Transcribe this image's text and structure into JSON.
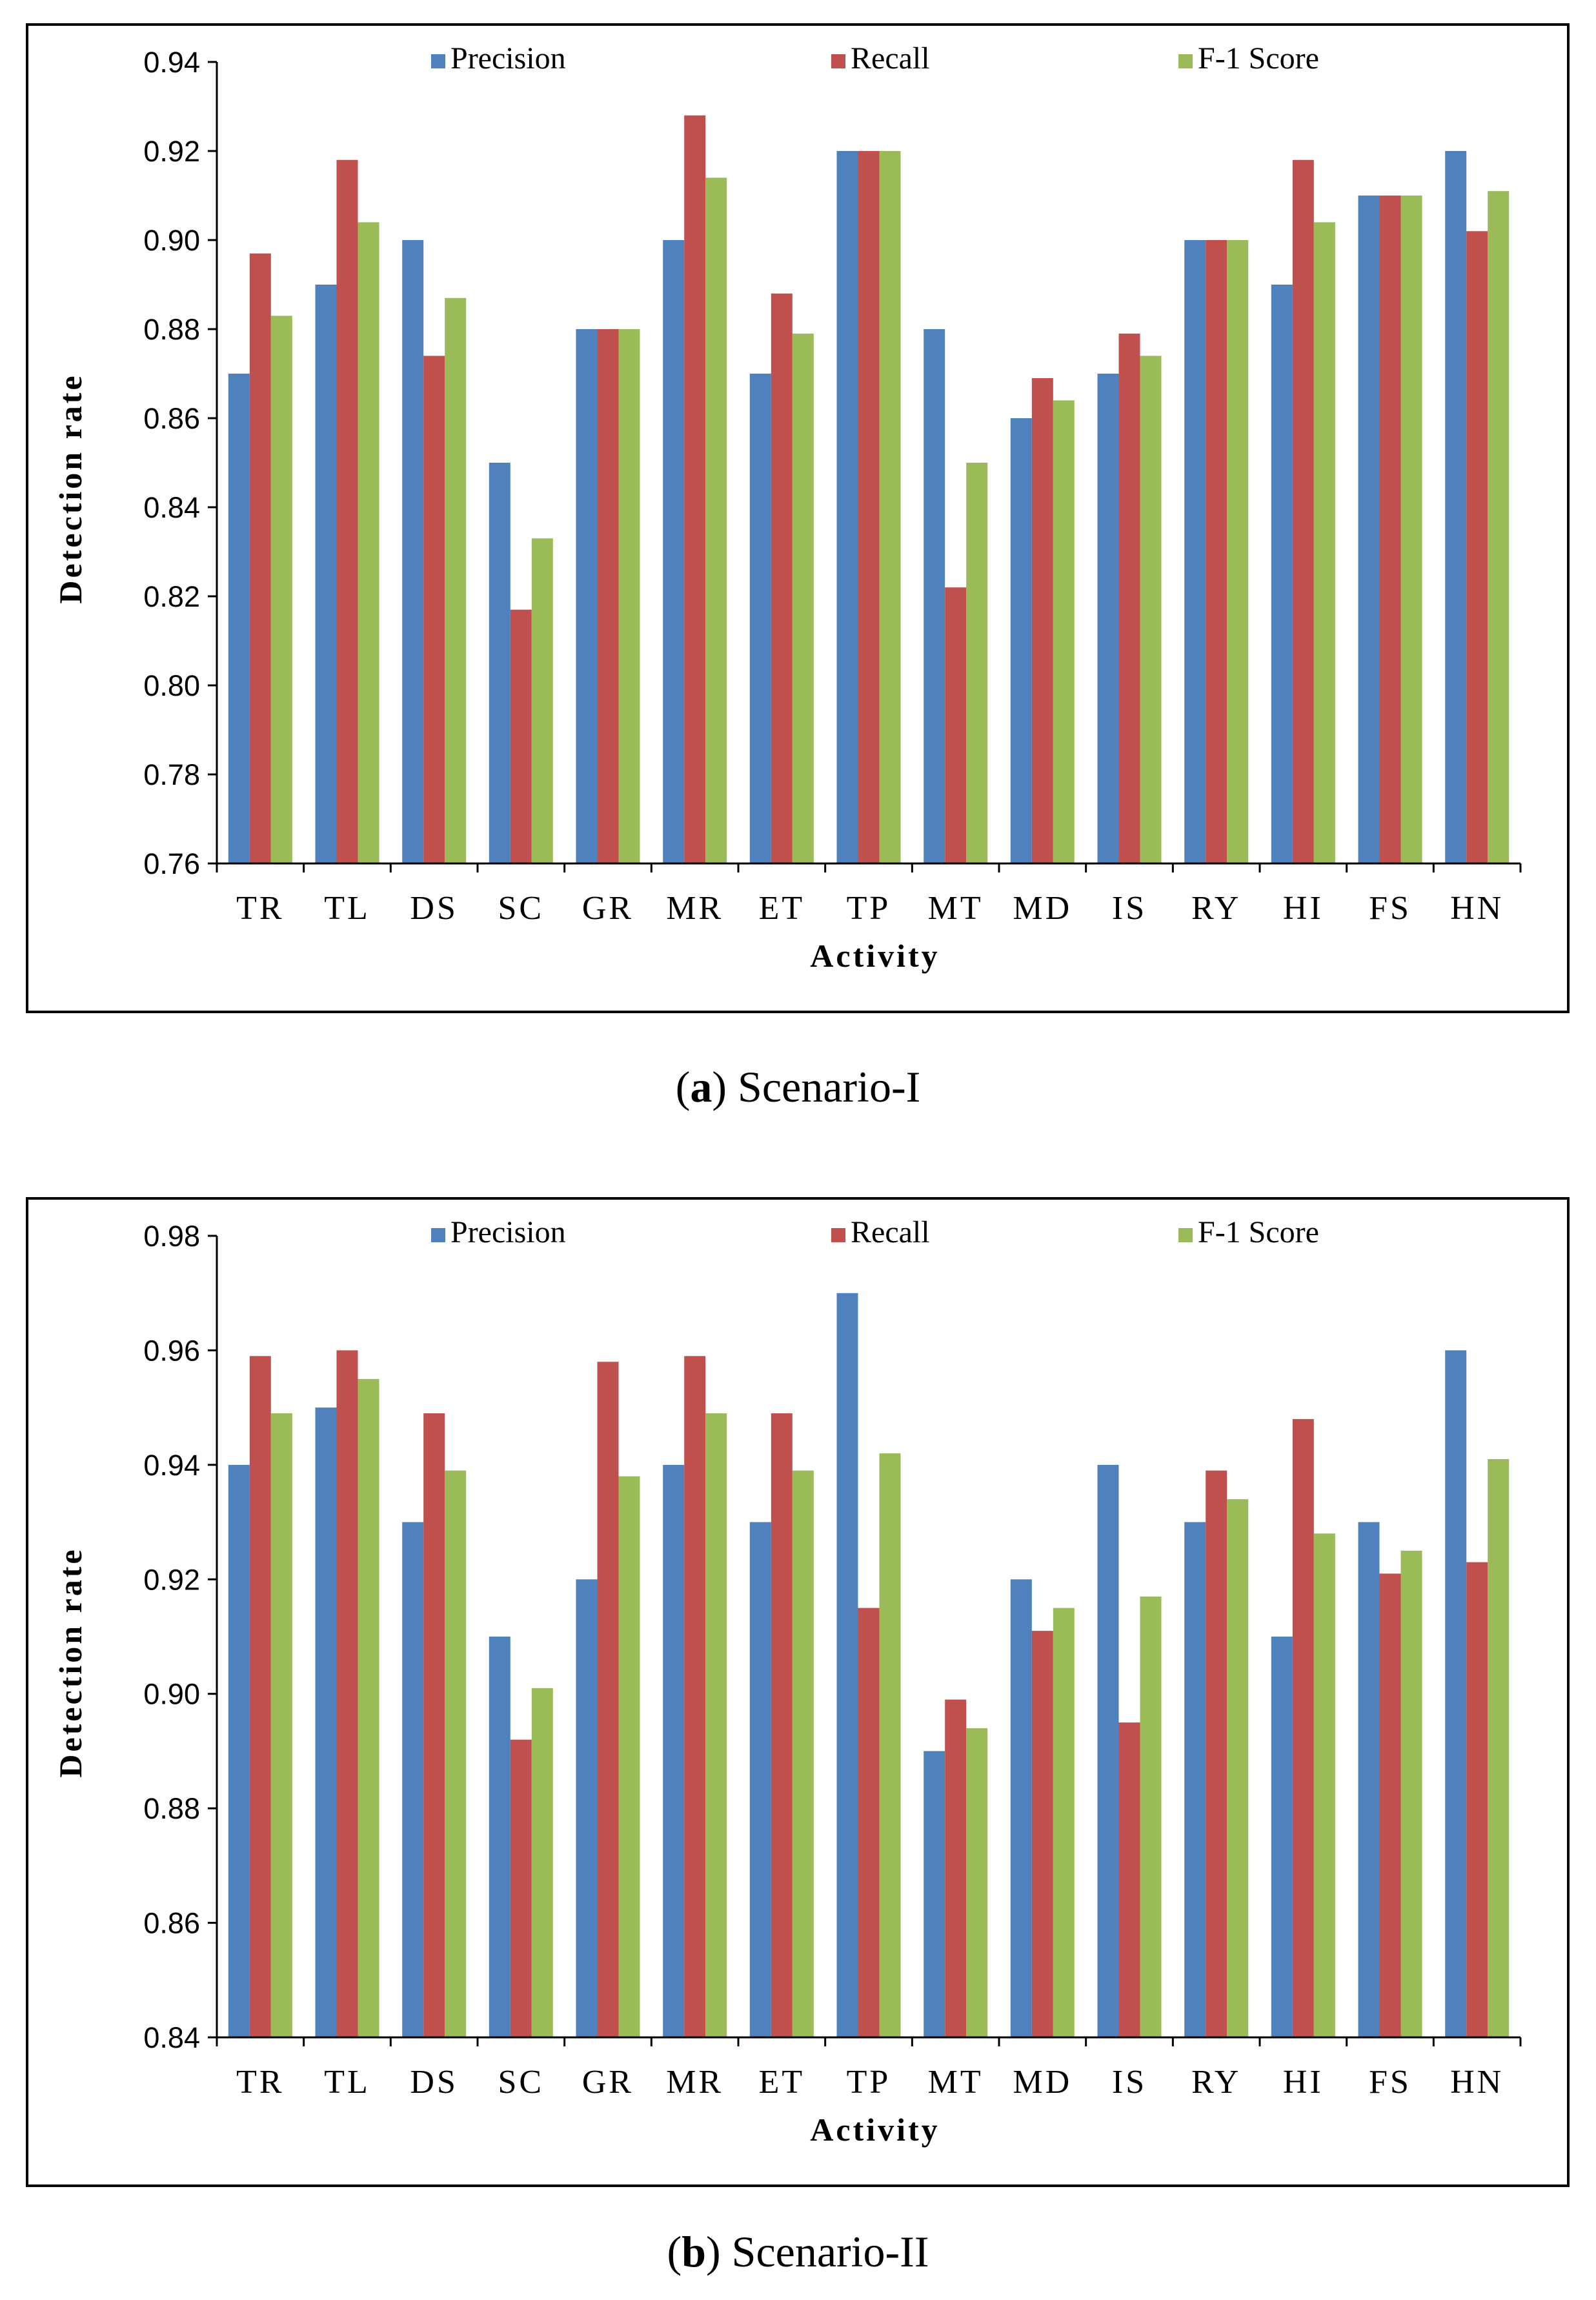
{
  "colors": {
    "precision": "#4f81bd",
    "recall": "#c0504d",
    "f1": "#9bbb59",
    "axis": "#000000"
  },
  "captions": [
    {
      "letter": "a",
      "text": " Scenario-I"
    },
    {
      "letter": "b",
      "text": " Scenario-II"
    }
  ],
  "chart_data": [
    {
      "type": "bar",
      "title": "",
      "xlabel": "Activity",
      "ylabel": "Detection rate",
      "ylim": [
        0.76,
        0.94
      ],
      "yticks": [
        "0.76",
        "0.78",
        "0.80",
        "0.82",
        "0.84",
        "0.86",
        "0.88",
        "0.90",
        "0.92",
        "0.94"
      ],
      "grid": false,
      "legend_position": "top",
      "categories": [
        "TR",
        "TL",
        "DS",
        "SC",
        "GR",
        "MR",
        "ET",
        "TP",
        "MT",
        "MD",
        "IS",
        "RY",
        "HI",
        "FS",
        "HN"
      ],
      "series": [
        {
          "name": "Precision",
          "color_key": "precision",
          "values": [
            0.87,
            0.89,
            0.9,
            0.85,
            0.88,
            0.9,
            0.87,
            0.92,
            0.88,
            0.86,
            0.87,
            0.9,
            0.89,
            0.91,
            0.92
          ]
        },
        {
          "name": "Recall",
          "color_key": "recall",
          "values": [
            0.897,
            0.918,
            0.874,
            0.817,
            0.88,
            0.928,
            0.888,
            0.92,
            0.822,
            0.869,
            0.879,
            0.9,
            0.918,
            0.91,
            0.902
          ]
        },
        {
          "name": "F-1 Score",
          "color_key": "f1",
          "values": [
            0.883,
            0.904,
            0.887,
            0.833,
            0.88,
            0.914,
            0.879,
            0.92,
            0.85,
            0.864,
            0.874,
            0.9,
            0.904,
            0.91,
            0.911
          ]
        }
      ]
    },
    {
      "type": "bar",
      "title": "",
      "xlabel": "Activity",
      "ylabel": "Detection rate",
      "ylim": [
        0.84,
        0.98
      ],
      "yticks": [
        "0.84",
        "0.86",
        "0.88",
        "0.90",
        "0.92",
        "0.94",
        "0.96",
        "0.98"
      ],
      "grid": false,
      "legend_position": "top",
      "categories": [
        "TR",
        "TL",
        "DS",
        "SC",
        "GR",
        "MR",
        "ET",
        "TP",
        "MT",
        "MD",
        "IS",
        "RY",
        "HI",
        "FS",
        "HN"
      ],
      "series": [
        {
          "name": "Precision",
          "color_key": "precision",
          "values": [
            0.94,
            0.95,
            0.93,
            0.91,
            0.92,
            0.94,
            0.93,
            0.97,
            0.89,
            0.92,
            0.94,
            0.93,
            0.91,
            0.93,
            0.96
          ]
        },
        {
          "name": "Recall",
          "color_key": "recall",
          "values": [
            0.959,
            0.96,
            0.949,
            0.892,
            0.958,
            0.959,
            0.949,
            0.915,
            0.899,
            0.911,
            0.895,
            0.939,
            0.948,
            0.921,
            0.923
          ]
        },
        {
          "name": "F-1 Score",
          "color_key": "f1",
          "values": [
            0.949,
            0.955,
            0.939,
            0.901,
            0.938,
            0.949,
            0.939,
            0.942,
            0.894,
            0.915,
            0.917,
            0.934,
            0.928,
            0.925,
            0.941
          ]
        }
      ]
    }
  ]
}
